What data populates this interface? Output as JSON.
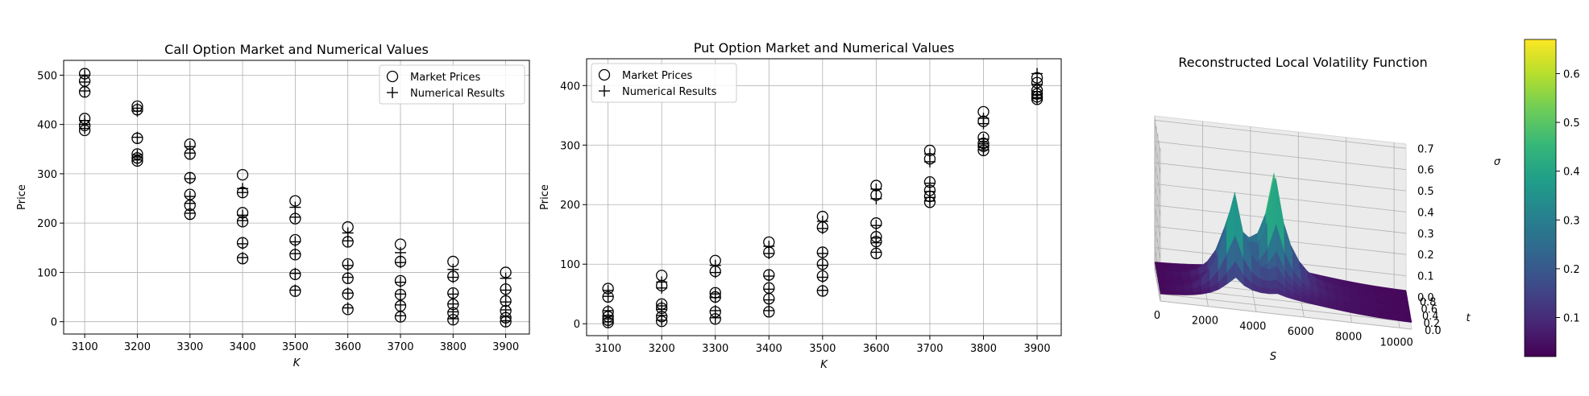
{
  "chart_data": [
    {
      "type": "scatter",
      "title": "Call Option Market and Numerical Values",
      "xlabel": "K",
      "ylabel": "Price",
      "xlim": [
        3060,
        3945
      ],
      "ylim": [
        -25,
        530
      ],
      "xticks": [
        3100,
        3200,
        3300,
        3400,
        3500,
        3600,
        3700,
        3800,
        3900
      ],
      "yticks": [
        0,
        100,
        200,
        300,
        400,
        500
      ],
      "grid": true,
      "legend": "upper-right",
      "series": [
        {
          "name": "Market Prices",
          "marker": "circle",
          "points": [
            [
              3100,
              503
            ],
            [
              3100,
              488
            ],
            [
              3100,
              466
            ],
            [
              3100,
              412
            ],
            [
              3100,
              398
            ],
            [
              3100,
              388
            ],
            [
              3200,
              437
            ],
            [
              3200,
              430
            ],
            [
              3200,
              372
            ],
            [
              3200,
              340
            ],
            [
              3200,
              332
            ],
            [
              3200,
              326
            ],
            [
              3300,
              360
            ],
            [
              3300,
              340
            ],
            [
              3300,
              292
            ],
            [
              3300,
              258
            ],
            [
              3300,
              236
            ],
            [
              3300,
              218
            ],
            [
              3400,
              298
            ],
            [
              3400,
              262
            ],
            [
              3400,
              221
            ],
            [
              3400,
              203
            ],
            [
              3400,
              160
            ],
            [
              3400,
              128
            ],
            [
              3500,
              245
            ],
            [
              3500,
              209
            ],
            [
              3500,
              166
            ],
            [
              3500,
              136
            ],
            [
              3500,
              96
            ],
            [
              3500,
              62
            ],
            [
              3600,
              192
            ],
            [
              3600,
              162
            ],
            [
              3600,
              117
            ],
            [
              3600,
              88
            ],
            [
              3600,
              56
            ],
            [
              3600,
              25
            ],
            [
              3700,
              157
            ],
            [
              3700,
              122
            ],
            [
              3700,
              83
            ],
            [
              3700,
              55
            ],
            [
              3700,
              32
            ],
            [
              3700,
              10
            ],
            [
              3800,
              122
            ],
            [
              3800,
              92
            ],
            [
              3800,
              58
            ],
            [
              3800,
              35
            ],
            [
              3800,
              18
            ],
            [
              3800,
              4
            ],
            [
              3900,
              100
            ],
            [
              3900,
              66
            ],
            [
              3900,
              42
            ],
            [
              3900,
              22
            ],
            [
              3900,
              8
            ],
            [
              3900,
              0
            ]
          ]
        },
        {
          "name": "Numerical Results",
          "marker": "plus",
          "points": [
            [
              3100,
              500
            ],
            [
              3100,
              486
            ],
            [
              3100,
              468
            ],
            [
              3100,
              408
            ],
            [
              3100,
              400
            ],
            [
              3100,
              392
            ],
            [
              3200,
              433
            ],
            [
              3200,
              427
            ],
            [
              3200,
              374
            ],
            [
              3200,
              338
            ],
            [
              3200,
              334
            ],
            [
              3200,
              328
            ],
            [
              3300,
              355
            ],
            [
              3300,
              342
            ],
            [
              3300,
              290
            ],
            [
              3300,
              254
            ],
            [
              3300,
              240
            ],
            [
              3300,
              220
            ],
            [
              3400,
              270
            ],
            [
              3400,
              262
            ],
            [
              3400,
              216
            ],
            [
              3400,
              205
            ],
            [
              3400,
              158
            ],
            [
              3400,
              130
            ],
            [
              3500,
              232
            ],
            [
              3500,
              212
            ],
            [
              3500,
              162
            ],
            [
              3500,
              138
            ],
            [
              3500,
              98
            ],
            [
              3500,
              64
            ],
            [
              3600,
              180
            ],
            [
              3600,
              164
            ],
            [
              3600,
              114
            ],
            [
              3600,
              90
            ],
            [
              3600,
              58
            ],
            [
              3600,
              28
            ],
            [
              3700,
              140
            ],
            [
              3700,
              120
            ],
            [
              3700,
              80
            ],
            [
              3700,
              56
            ],
            [
              3700,
              34
            ],
            [
              3700,
              12
            ],
            [
              3800,
              106
            ],
            [
              3800,
              90
            ],
            [
              3800,
              56
            ],
            [
              3800,
              36
            ],
            [
              3800,
              20
            ],
            [
              3800,
              6
            ],
            [
              3900,
              88
            ],
            [
              3900,
              64
            ],
            [
              3900,
              40
            ],
            [
              3900,
              24
            ],
            [
              3900,
              10
            ],
            [
              3900,
              2
            ]
          ]
        }
      ]
    },
    {
      "type": "scatter",
      "title": "Put Option Market and Numerical Values",
      "xlabel": "K",
      "ylabel": "Price",
      "xlim": [
        3060,
        3945
      ],
      "ylim": [
        -20,
        445
      ],
      "xticks": [
        3100,
        3200,
        3300,
        3400,
        3500,
        3600,
        3700,
        3800,
        3900
      ],
      "yticks": [
        0,
        100,
        200,
        300,
        400
      ],
      "grid": true,
      "legend": "upper-left",
      "series": [
        {
          "name": "Market Prices",
          "marker": "circle",
          "points": [
            [
              3100,
              59
            ],
            [
              3100,
              45
            ],
            [
              3100,
              20
            ],
            [
              3100,
              12
            ],
            [
              3100,
              6
            ],
            [
              3100,
              2
            ],
            [
              3200,
              81
            ],
            [
              3200,
              64
            ],
            [
              3200,
              33
            ],
            [
              3200,
              26
            ],
            [
              3200,
              12
            ],
            [
              3200,
              4
            ],
            [
              3300,
              106
            ],
            [
              3300,
              88
            ],
            [
              3300,
              52
            ],
            [
              3300,
              45
            ],
            [
              3300,
              20
            ],
            [
              3300,
              8
            ],
            [
              3400,
              137
            ],
            [
              3400,
              120
            ],
            [
              3400,
              82
            ],
            [
              3400,
              60
            ],
            [
              3400,
              42
            ],
            [
              3400,
              20
            ],
            [
              3500,
              180
            ],
            [
              3500,
              162
            ],
            [
              3500,
              120
            ],
            [
              3500,
              100
            ],
            [
              3500,
              80
            ],
            [
              3500,
              55
            ],
            [
              3600,
              232
            ],
            [
              3600,
              216
            ],
            [
              3600,
              169
            ],
            [
              3600,
              146
            ],
            [
              3600,
              138
            ],
            [
              3600,
              118
            ],
            [
              3700,
              291
            ],
            [
              3700,
              277
            ],
            [
              3700,
              238
            ],
            [
              3700,
              224
            ],
            [
              3700,
              214
            ],
            [
              3700,
              204
            ],
            [
              3800,
              356
            ],
            [
              3800,
              340
            ],
            [
              3800,
              313
            ],
            [
              3800,
              303
            ],
            [
              3800,
              298
            ],
            [
              3800,
              291
            ],
            [
              3900,
              413
            ],
            [
              3900,
              405
            ],
            [
              3900,
              392
            ],
            [
              3900,
              386
            ],
            [
              3900,
              381
            ],
            [
              3900,
              377
            ]
          ]
        },
        {
          "name": "Numerical Results",
          "marker": "plus",
          "points": [
            [
              3100,
              56
            ],
            [
              3100,
              46
            ],
            [
              3100,
              22
            ],
            [
              3100,
              14
            ],
            [
              3100,
              8
            ],
            [
              3100,
              3
            ],
            [
              3200,
              70
            ],
            [
              3200,
              60
            ],
            [
              3200,
              30
            ],
            [
              3200,
              24
            ],
            [
              3200,
              14
            ],
            [
              3200,
              6
            ],
            [
              3300,
              98
            ],
            [
              3300,
              86
            ],
            [
              3300,
              50
            ],
            [
              3300,
              44
            ],
            [
              3300,
              22
            ],
            [
              3300,
              10
            ],
            [
              3400,
              130
            ],
            [
              3400,
              118
            ],
            [
              3400,
              80
            ],
            [
              3400,
              58
            ],
            [
              3400,
              40
            ],
            [
              3400,
              22
            ],
            [
              3500,
              172
            ],
            [
              3500,
              160
            ],
            [
              3500,
              118
            ],
            [
              3500,
              98
            ],
            [
              3500,
              78
            ],
            [
              3500,
              56
            ],
            [
              3600,
              226
            ],
            [
              3600,
              210
            ],
            [
              3600,
              165
            ],
            [
              3600,
              144
            ],
            [
              3600,
              136
            ],
            [
              3600,
              120
            ],
            [
              3700,
              285
            ],
            [
              3700,
              272
            ],
            [
              3700,
              236
            ],
            [
              3700,
              222
            ],
            [
              3700,
              212
            ],
            [
              3700,
              206
            ],
            [
              3800,
              345
            ],
            [
              3800,
              336
            ],
            [
              3800,
              310
            ],
            [
              3800,
              302
            ],
            [
              3800,
              296
            ],
            [
              3800,
              292
            ],
            [
              3900,
              420
            ],
            [
              3900,
              402
            ],
            [
              3900,
              390
            ],
            [
              3900,
              384
            ],
            [
              3900,
              380
            ],
            [
              3900,
              378
            ]
          ]
        }
      ]
    },
    {
      "type": "surface3d",
      "title": "Reconstructed Local Volatility Function",
      "xlabel": "S",
      "ylabel": "t",
      "zlabel": "σ",
      "xticks": [
        0,
        2000,
        4000,
        6000,
        8000,
        10000
      ],
      "yticks": [
        0.0,
        0.2,
        0.4,
        0.6,
        0.8
      ],
      "zticks": [
        0.0,
        0.1,
        0.2,
        0.3,
        0.4,
        0.5,
        0.6,
        0.7
      ],
      "xlim": [
        0,
        10500
      ],
      "ylim": [
        0,
        0.9
      ],
      "zlim": [
        0,
        0.72
      ],
      "colormap": "viridis",
      "peaks": [
        {
          "S": 3100,
          "t": 0.15,
          "sigma": 0.55
        },
        {
          "S": 3100,
          "t": 0.52,
          "sigma": 0.5
        },
        {
          "S": 4900,
          "t": 0.32,
          "sigma": 0.66
        },
        {
          "S": 4900,
          "t": 0.58,
          "sigma": 0.62
        }
      ],
      "colorbar": {
        "ticks": [
          0.1,
          0.2,
          0.3,
          0.4,
          0.5,
          0.6
        ],
        "range": [
          0.02,
          0.67
        ]
      }
    }
  ]
}
